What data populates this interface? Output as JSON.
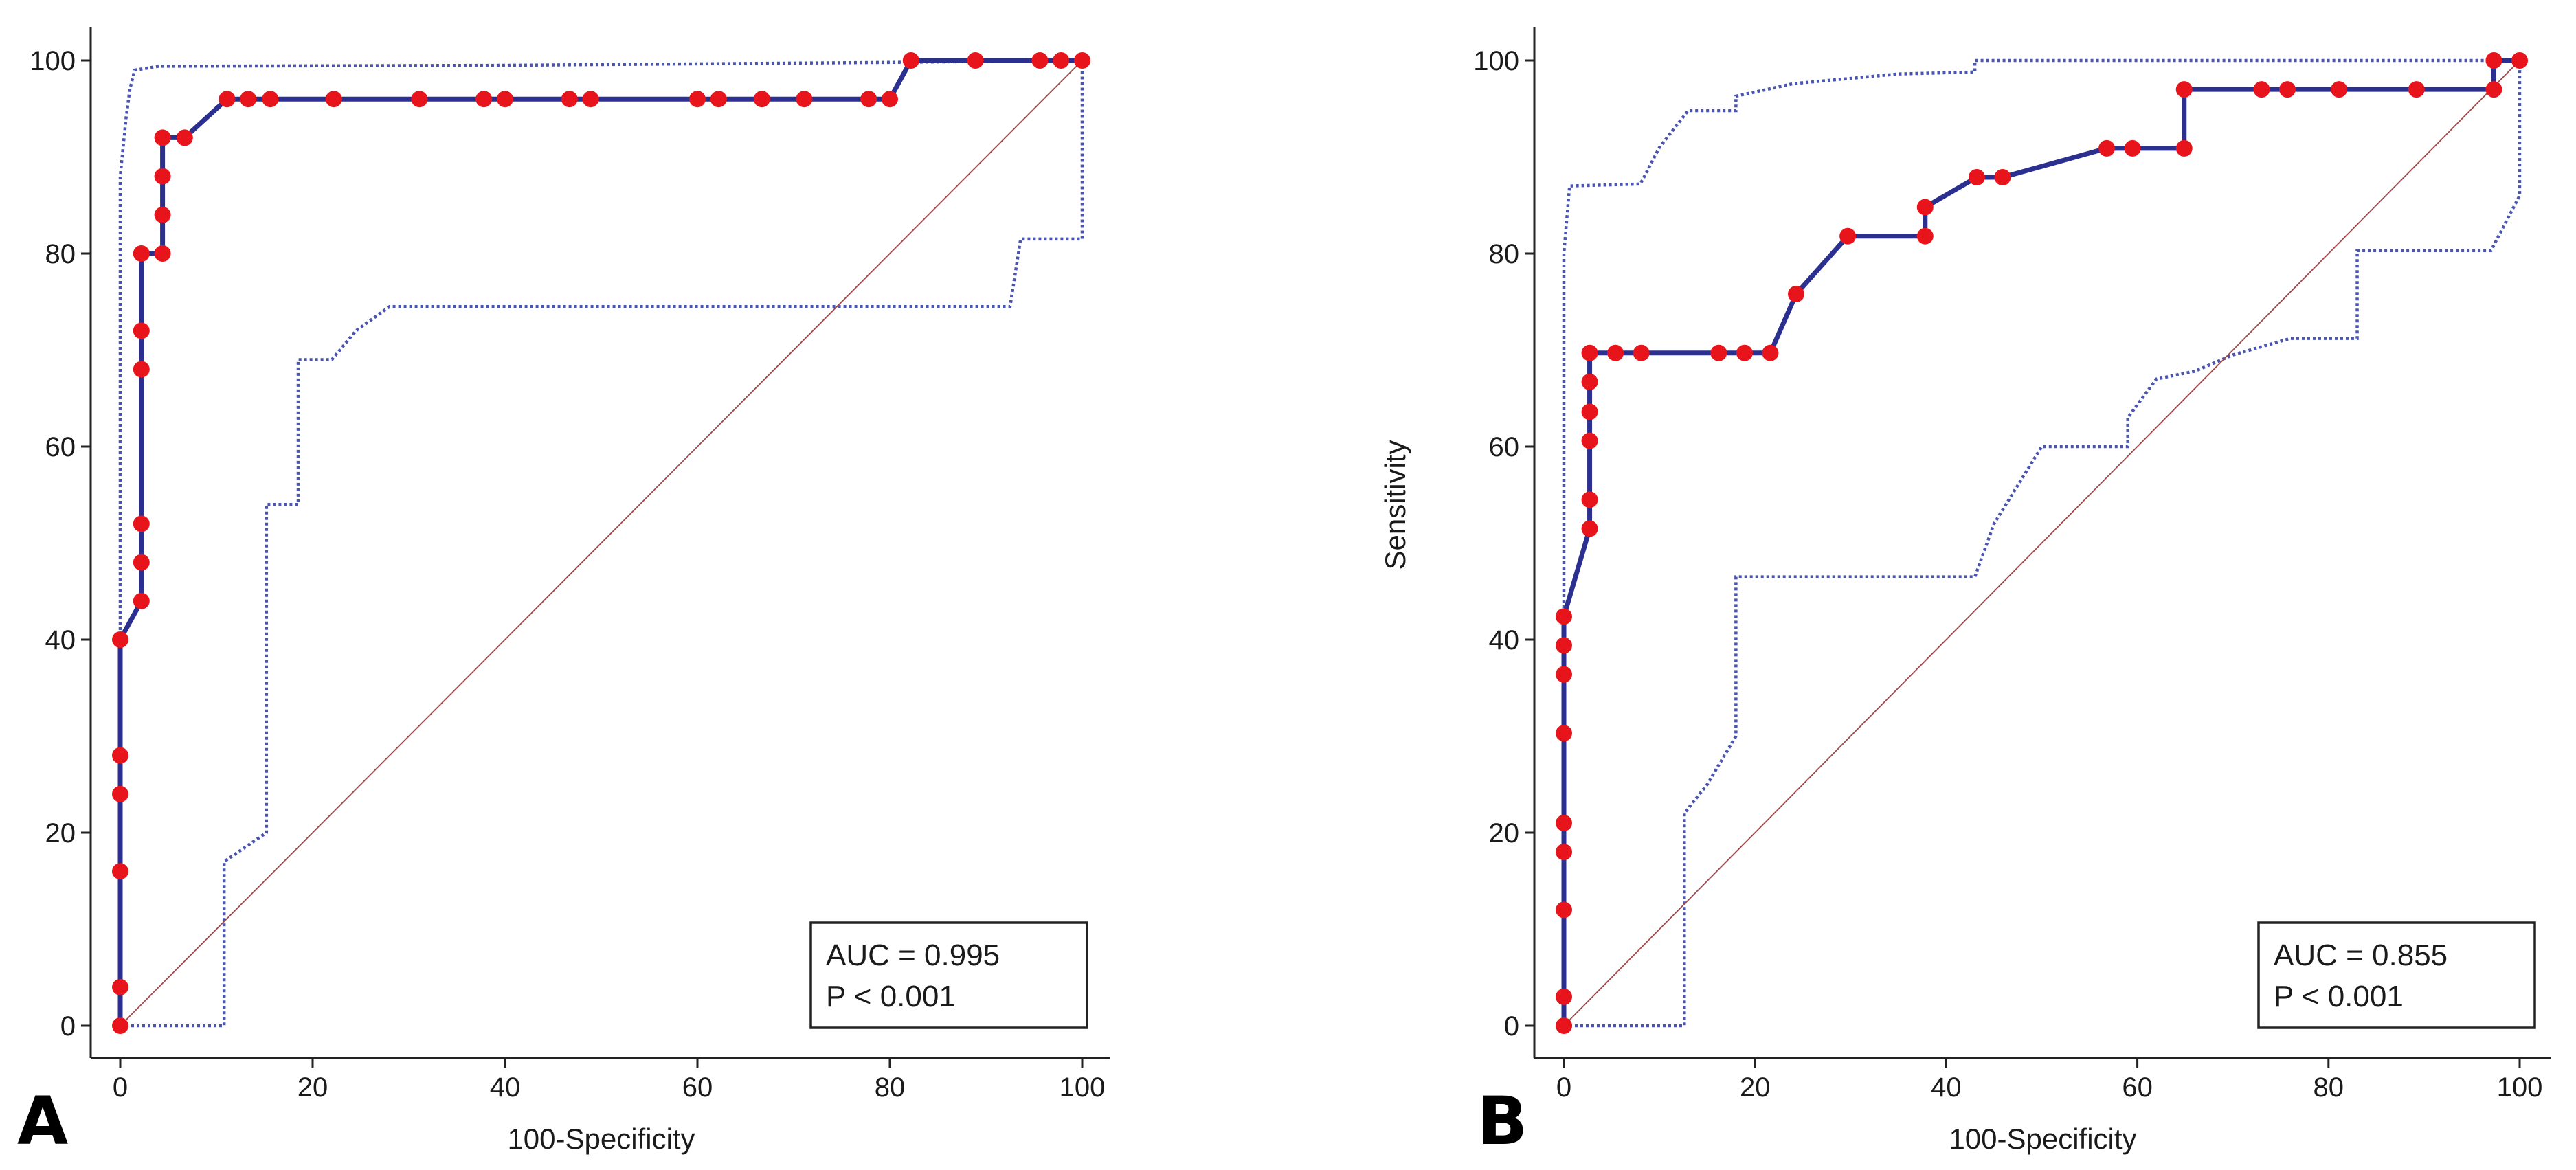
{
  "colors": {
    "roc_line": "#2b2f8f",
    "roc_point": "#e8141b",
    "ci_line": "#4a55b0",
    "diagonal": "#a04848",
    "axis": "#222222",
    "text": "#1a1a1a"
  },
  "chart_data": [
    {
      "type": "line",
      "panel_label": "A",
      "xlabel": "100-Specificity",
      "ylabel": "",
      "xlim": [
        0,
        100
      ],
      "ylim": [
        0,
        100
      ],
      "x_ticks": [
        "0",
        "20",
        "40",
        "60",
        "80",
        "100"
      ],
      "y_ticks": [
        "0",
        "20",
        "40",
        "60",
        "80",
        "100"
      ],
      "grid": false,
      "legend_box": {
        "auc_text": "AUC = 0.995",
        "p_text": "P < 0.001",
        "placement": "bottom-right"
      },
      "series": [
        {
          "name": "ROC curve",
          "style": "solid",
          "step_points": [
            [
              0,
              0
            ],
            [
              0,
              4
            ],
            [
              0,
              16
            ],
            [
              0,
              24
            ],
            [
              0,
              28
            ],
            [
              0,
              40
            ],
            [
              2.2,
              44
            ],
            [
              2.2,
              48
            ],
            [
              2.2,
              52
            ],
            [
              2.2,
              68
            ],
            [
              2.2,
              72
            ],
            [
              2.2,
              80
            ],
            [
              4.4,
              80
            ],
            [
              4.4,
              84
            ],
            [
              4.4,
              88
            ],
            [
              4.4,
              92
            ],
            [
              6.7,
              92
            ],
            [
              11.1,
              96
            ],
            [
              13.3,
              96
            ],
            [
              15.6,
              96
            ],
            [
              22.2,
              96
            ],
            [
              31.1,
              96
            ],
            [
              37.8,
              96
            ],
            [
              40,
              96
            ],
            [
              46.7,
              96
            ],
            [
              48.9,
              96
            ],
            [
              60,
              96
            ],
            [
              62.2,
              96
            ],
            [
              66.7,
              96
            ],
            [
              71.1,
              96
            ],
            [
              77.8,
              96
            ],
            [
              80,
              96
            ],
            [
              82.2,
              100
            ],
            [
              88.9,
              100
            ],
            [
              95.6,
              100
            ],
            [
              97.8,
              100
            ],
            [
              100,
              100
            ]
          ]
        },
        {
          "name": "95% CI upper",
          "style": "dotted",
          "points": [
            [
              0,
              0
            ],
            [
              0,
              88
            ],
            [
              0.6,
              94
            ],
            [
              1,
              97
            ],
            [
              1.5,
              99
            ],
            [
              4,
              99.4
            ],
            [
              40,
              99.5
            ],
            [
              80,
              99.8
            ],
            [
              100,
              100
            ]
          ]
        },
        {
          "name": "95% CI lower",
          "style": "dotted",
          "points": [
            [
              0,
              0
            ],
            [
              10.8,
              0
            ],
            [
              10.8,
              17
            ],
            [
              13,
              18.5
            ],
            [
              15.2,
              20
            ],
            [
              15.2,
              54
            ],
            [
              18.5,
              54
            ],
            [
              18.5,
              69
            ],
            [
              22,
              69
            ],
            [
              24.5,
              72
            ],
            [
              28,
              74.5
            ],
            [
              92.5,
              74.5
            ],
            [
              93.6,
              81.5
            ],
            [
              100,
              81.5
            ],
            [
              100,
              100
            ]
          ]
        },
        {
          "name": "Reference line",
          "style": "thin",
          "points": [
            [
              0,
              0
            ],
            [
              100,
              100
            ]
          ]
        }
      ]
    },
    {
      "type": "line",
      "panel_label": "B",
      "xlabel": "100-Specificity",
      "ylabel": "Sensitivity",
      "xlim": [
        0,
        100
      ],
      "ylim": [
        0,
        100
      ],
      "x_ticks": [
        "0",
        "20",
        "40",
        "60",
        "80",
        "100"
      ],
      "y_ticks": [
        "0",
        "20",
        "40",
        "60",
        "80",
        "100"
      ],
      "grid": false,
      "legend_box": {
        "auc_text": "AUC = 0.855",
        "p_text": "P < 0.001",
        "placement": "bottom-right"
      },
      "series": [
        {
          "name": "ROC curve",
          "style": "solid",
          "step_points": [
            [
              0,
              0
            ],
            [
              0,
              3
            ],
            [
              0,
              12
            ],
            [
              0,
              18
            ],
            [
              0,
              21
            ],
            [
              0,
              30.3
            ],
            [
              0,
              36.4
            ],
            [
              0,
              39.4
            ],
            [
              0,
              42.4
            ],
            [
              2.7,
              51.5
            ],
            [
              2.7,
              54.5
            ],
            [
              2.7,
              60.6
            ],
            [
              2.7,
              63.6
            ],
            [
              2.7,
              66.7
            ],
            [
              2.7,
              69.7
            ],
            [
              5.4,
              69.7
            ],
            [
              8.1,
              69.7
            ],
            [
              16.2,
              69.7
            ],
            [
              18.9,
              69.7
            ],
            [
              21.6,
              69.7
            ],
            [
              24.3,
              75.8
            ],
            [
              29.7,
              81.8
            ],
            [
              37.8,
              81.8
            ],
            [
              37.8,
              84.8
            ],
            [
              43.2,
              87.9
            ],
            [
              45.9,
              87.9
            ],
            [
              56.8,
              90.9
            ],
            [
              59.5,
              90.9
            ],
            [
              64.9,
              90.9
            ],
            [
              64.9,
              97
            ],
            [
              73,
              97
            ],
            [
              75.7,
              97
            ],
            [
              81.1,
              97
            ],
            [
              89.2,
              97
            ],
            [
              97.3,
              97
            ],
            [
              97.3,
              100
            ],
            [
              100,
              100
            ]
          ]
        },
        {
          "name": "95% CI upper",
          "style": "dotted",
          "points": [
            [
              0,
              0
            ],
            [
              0,
              80
            ],
            [
              0.6,
              87
            ],
            [
              8,
              87.2
            ],
            [
              10,
              91
            ],
            [
              13,
              94.8
            ],
            [
              18,
              94.8
            ],
            [
              18,
              96.3
            ],
            [
              24,
              97.6
            ],
            [
              35,
              98.6
            ],
            [
              43,
              98.8
            ],
            [
              43,
              100
            ],
            [
              100,
              100
            ]
          ]
        },
        {
          "name": "95% CI lower",
          "style": "dotted",
          "points": [
            [
              0,
              0
            ],
            [
              12.6,
              0
            ],
            [
              12.6,
              22
            ],
            [
              15,
              25
            ],
            [
              18,
              30
            ],
            [
              18,
              46.5
            ],
            [
              43,
              46.5
            ],
            [
              45,
              52
            ],
            [
              50,
              60
            ],
            [
              59,
              60
            ],
            [
              59,
              63
            ],
            [
              62,
              67
            ],
            [
              66,
              67.8
            ],
            [
              70,
              69.5
            ],
            [
              76,
              71.2
            ],
            [
              83,
              71.2
            ],
            [
              83,
              80.3
            ],
            [
              97,
              80.3
            ],
            [
              100,
              86
            ],
            [
              100,
              100
            ]
          ]
        },
        {
          "name": "Reference line",
          "style": "thin",
          "points": [
            [
              0,
              0
            ],
            [
              100,
              100
            ]
          ]
        }
      ]
    }
  ]
}
